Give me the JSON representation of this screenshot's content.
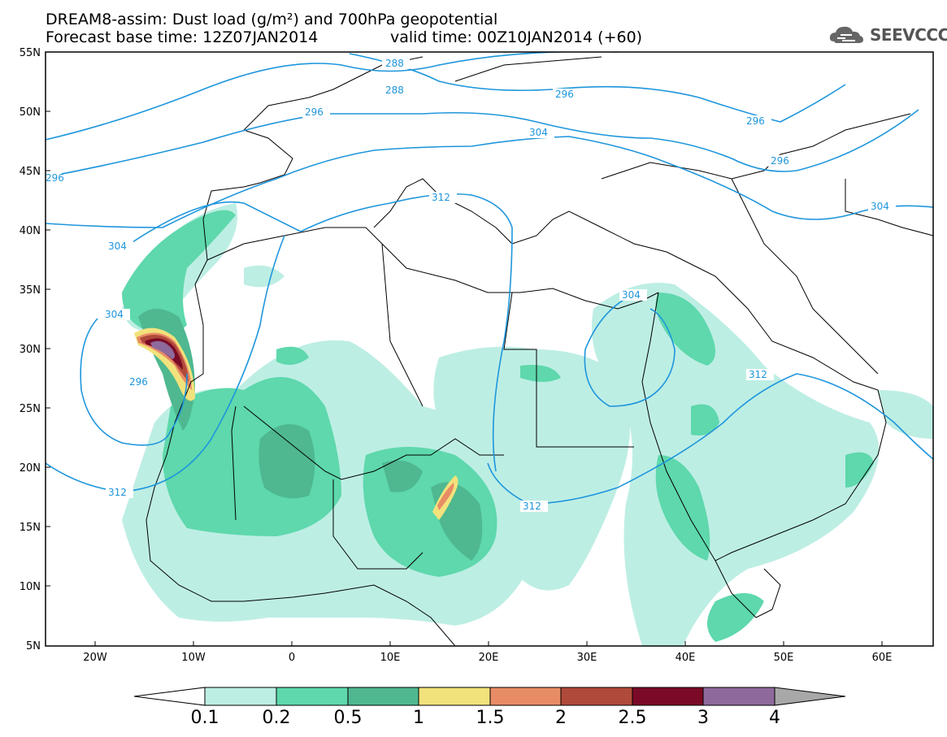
{
  "title_line1": "DREAM8-assim: Dust load (g/m²) and 700hPa geopotential",
  "title_line2": "Forecast base time: 12Z07JAN2014",
  "title_line2b": "valid time: 00Z10JAN2014 (+60)",
  "logo_text": "SEEVCCC",
  "map": {
    "lat_ticks": [
      "55N",
      "50N",
      "45N",
      "40N",
      "35N",
      "30N",
      "25N",
      "20N",
      "15N",
      "10N",
      "5N"
    ],
    "lon_ticks": [
      "20W",
      "10W",
      "0",
      "10E",
      "20E",
      "30E",
      "40E",
      "50E",
      "60E"
    ],
    "contour_labels": [
      "288",
      "288",
      "296",
      "296",
      "296",
      "296",
      "296",
      "304",
      "304",
      "304",
      "304",
      "312",
      "312",
      "312",
      "312",
      "296",
      "304"
    ],
    "colors": {
      "contour": "#1e96dc"
    }
  },
  "colorbar": {
    "labels": [
      "0.1",
      "0.2",
      "0.5",
      "1",
      "1.5",
      "2",
      "2.5",
      "3",
      "4"
    ],
    "colors": [
      "#bdeee4",
      "#5ed8ac",
      "#4fb890",
      "#f2e27c",
      "#e88c66",
      "#b04a3a",
      "#7a0a26",
      "#8e6a9c",
      "#a8a8a8"
    ]
  }
}
